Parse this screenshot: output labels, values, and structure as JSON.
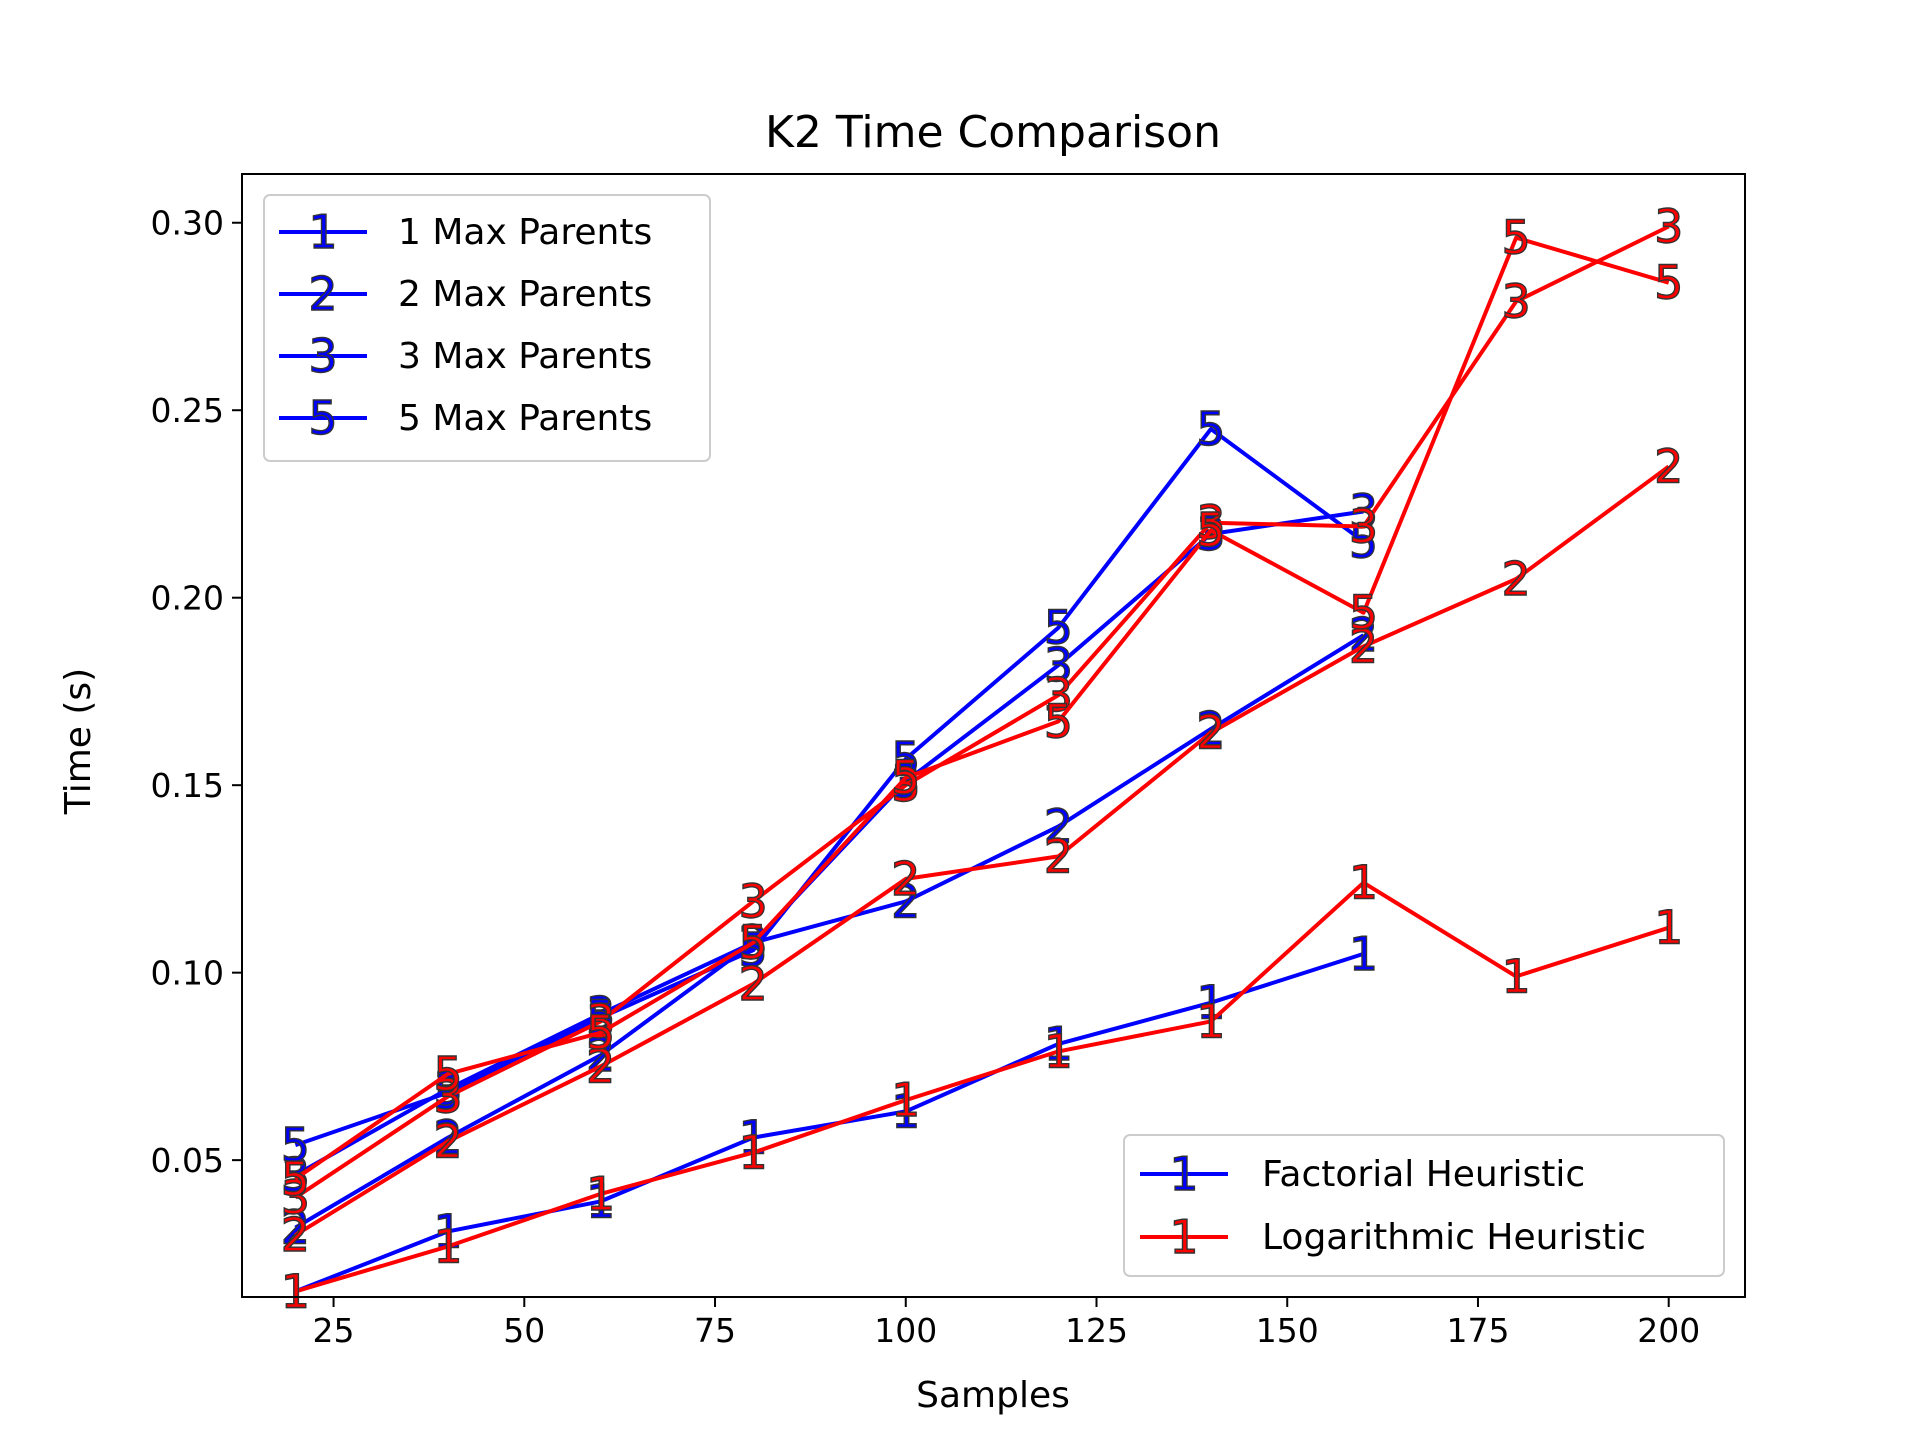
{
  "chart_data": {
    "type": "line",
    "title": "K2 Time Comparison",
    "xlabel": "Samples",
    "ylabel": "Time (s)",
    "xlim": [
      13,
      210
    ],
    "ylim": [
      0.0135,
      0.313
    ],
    "x_ticks": [
      25,
      50,
      75,
      100,
      125,
      150,
      175,
      200
    ],
    "x_tick_labels": [
      "25",
      "50",
      "75",
      "100",
      "125",
      "150",
      "175",
      "200"
    ],
    "y_ticks": [
      0.05,
      0.1,
      0.15,
      0.2,
      0.25,
      0.3
    ],
    "y_tick_labels": [
      "0.05",
      "0.10",
      "0.15",
      "0.20",
      "0.25",
      "0.30"
    ],
    "grid": false,
    "colors": {
      "Factorial Heuristic": "#0000ff",
      "Logarithmic Heuristic": "#ff0000"
    },
    "legend_max_parents": {
      "placement": "upper-left",
      "entries": [
        {
          "marker": "1",
          "label": "1 Max Parents"
        },
        {
          "marker": "2",
          "label": "2 Max Parents"
        },
        {
          "marker": "3",
          "label": "3 Max Parents"
        },
        {
          "marker": "5",
          "label": "5 Max Parents"
        }
      ]
    },
    "legend_heuristic": {
      "placement": "lower-right",
      "entries": [
        {
          "marker": "1",
          "label": "Factorial Heuristic",
          "color": "#0000ff"
        },
        {
          "marker": "1",
          "label": "Logarithmic Heuristic",
          "color": "#ff0000"
        }
      ]
    },
    "series": [
      {
        "heuristic": "Factorial Heuristic",
        "marker": "1",
        "color": "#0000ff",
        "x": [
          20,
          40,
          60,
          80,
          100,
          120,
          140,
          160
        ],
        "y": [
          0.015,
          0.031,
          0.039,
          0.056,
          0.063,
          0.081,
          0.092,
          0.105
        ]
      },
      {
        "heuristic": "Factorial Heuristic",
        "marker": "2",
        "color": "#0000ff",
        "x": [
          20,
          40,
          60,
          80,
          100,
          120,
          140,
          160
        ],
        "y": [
          0.032,
          0.056,
          0.078,
          0.108,
          0.119,
          0.139,
          0.165,
          0.19
        ]
      },
      {
        "heuristic": "Factorial Heuristic",
        "marker": "3",
        "color": "#0000ff",
        "x": [
          20,
          40,
          60,
          80,
          100,
          120,
          140,
          160
        ],
        "y": [
          0.046,
          0.069,
          0.089,
          0.108,
          0.151,
          0.182,
          0.217,
          0.223
        ]
      },
      {
        "heuristic": "Factorial Heuristic",
        "marker": "5",
        "color": "#0000ff",
        "x": [
          20,
          40,
          60,
          80,
          100,
          120,
          140,
          160
        ],
        "y": [
          0.054,
          0.068,
          0.088,
          0.106,
          0.157,
          0.192,
          0.245,
          0.215
        ]
      },
      {
        "heuristic": "Logarithmic Heuristic",
        "marker": "1",
        "color": "#ff0000",
        "x": [
          20,
          40,
          60,
          80,
          100,
          120,
          140,
          160,
          180,
          200
        ],
        "y": [
          0.015,
          0.027,
          0.041,
          0.052,
          0.066,
          0.079,
          0.087,
          0.124,
          0.099,
          0.112
        ]
      },
      {
        "heuristic": "Logarithmic Heuristic",
        "marker": "2",
        "color": "#ff0000",
        "x": [
          20,
          40,
          60,
          80,
          100,
          120,
          140,
          160,
          180,
          200
        ],
        "y": [
          0.03,
          0.055,
          0.075,
          0.097,
          0.125,
          0.131,
          0.164,
          0.187,
          0.205,
          0.235
        ]
      },
      {
        "heuristic": "Logarithmic Heuristic",
        "marker": "3",
        "color": "#ff0000",
        "x": [
          20,
          40,
          60,
          80,
          100,
          120,
          140,
          160,
          180,
          200
        ],
        "y": [
          0.04,
          0.067,
          0.087,
          0.119,
          0.15,
          0.174,
          0.22,
          0.219,
          0.279,
          0.299
        ]
      },
      {
        "heuristic": "Logarithmic Heuristic",
        "marker": "5",
        "color": "#ff0000",
        "x": [
          20,
          40,
          60,
          80,
          100,
          120,
          140,
          160,
          180,
          200
        ],
        "y": [
          0.045,
          0.073,
          0.084,
          0.108,
          0.152,
          0.167,
          0.218,
          0.196,
          0.296,
          0.284
        ]
      }
    ]
  }
}
